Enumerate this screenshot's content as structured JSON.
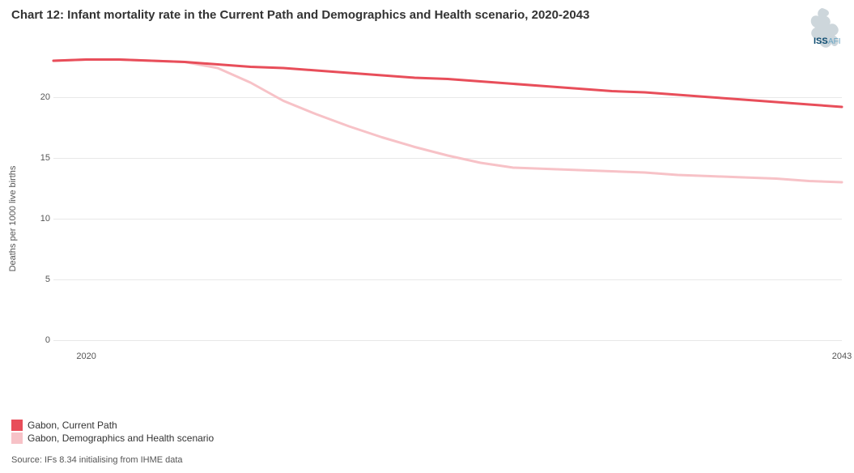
{
  "title": "Chart 12: Infant mortality rate in the Current Path and Demographics and Health scenario, 2020-2043",
  "logo": {
    "text_left": "ISS",
    "text_right": "AFI",
    "color_left": "#0b4a6f",
    "color_right": "#6aa5c4",
    "silhouette_color": "#cdd6db"
  },
  "y_axis": {
    "label": "Deaths per 1000 live births",
    "min": 0,
    "max": 24,
    "ticks": [
      0,
      5,
      10,
      15,
      20
    ]
  },
  "x_axis": {
    "min": 2019,
    "max": 2043,
    "ticks": [
      2020,
      2043
    ]
  },
  "grid_color": "#e8e8e8",
  "background_color": "#ffffff",
  "series": [
    {
      "name": "Gabon, Current Path",
      "color": "#e84e5a",
      "line_width": 3,
      "points": [
        {
          "x": 2019,
          "y": 23.0
        },
        {
          "x": 2020,
          "y": 23.1
        },
        {
          "x": 2021,
          "y": 23.1
        },
        {
          "x": 2022,
          "y": 23.0
        },
        {
          "x": 2023,
          "y": 22.9
        },
        {
          "x": 2024,
          "y": 22.7
        },
        {
          "x": 2025,
          "y": 22.5
        },
        {
          "x": 2026,
          "y": 22.4
        },
        {
          "x": 2027,
          "y": 22.2
        },
        {
          "x": 2028,
          "y": 22.0
        },
        {
          "x": 2029,
          "y": 21.8
        },
        {
          "x": 2030,
          "y": 21.6
        },
        {
          "x": 2031,
          "y": 21.5
        },
        {
          "x": 2032,
          "y": 21.3
        },
        {
          "x": 2033,
          "y": 21.1
        },
        {
          "x": 2034,
          "y": 20.9
        },
        {
          "x": 2035,
          "y": 20.7
        },
        {
          "x": 2036,
          "y": 20.5
        },
        {
          "x": 2037,
          "y": 20.4
        },
        {
          "x": 2038,
          "y": 20.2
        },
        {
          "x": 2039,
          "y": 20.0
        },
        {
          "x": 2040,
          "y": 19.8
        },
        {
          "x": 2041,
          "y": 19.6
        },
        {
          "x": 2042,
          "y": 19.4
        },
        {
          "x": 2043,
          "y": 19.2
        }
      ]
    },
    {
      "name": "Gabon, Demographics and Health scenario",
      "color": "#f7c2c7",
      "line_width": 3,
      "points": [
        {
          "x": 2019,
          "y": 23.0
        },
        {
          "x": 2020,
          "y": 23.1
        },
        {
          "x": 2021,
          "y": 23.1
        },
        {
          "x": 2022,
          "y": 23.0
        },
        {
          "x": 2023,
          "y": 22.9
        },
        {
          "x": 2024,
          "y": 22.4
        },
        {
          "x": 2025,
          "y": 21.2
        },
        {
          "x": 2026,
          "y": 19.7
        },
        {
          "x": 2027,
          "y": 18.6
        },
        {
          "x": 2028,
          "y": 17.6
        },
        {
          "x": 2029,
          "y": 16.7
        },
        {
          "x": 2030,
          "y": 15.9
        },
        {
          "x": 2031,
          "y": 15.2
        },
        {
          "x": 2032,
          "y": 14.6
        },
        {
          "x": 2033,
          "y": 14.2
        },
        {
          "x": 2034,
          "y": 14.1
        },
        {
          "x": 2035,
          "y": 14.0
        },
        {
          "x": 2036,
          "y": 13.9
        },
        {
          "x": 2037,
          "y": 13.8
        },
        {
          "x": 2038,
          "y": 13.6
        },
        {
          "x": 2039,
          "y": 13.5
        },
        {
          "x": 2040,
          "y": 13.4
        },
        {
          "x": 2041,
          "y": 13.3
        },
        {
          "x": 2042,
          "y": 13.1
        },
        {
          "x": 2043,
          "y": 13.0
        }
      ]
    }
  ],
  "legend": {
    "items": [
      {
        "label": "Gabon, Current Path",
        "color": "#e84e5a"
      },
      {
        "label": "Gabon, Demographics and Health scenario",
        "color": "#f7c2c7"
      }
    ]
  },
  "source": "Source: IFs 8.34 initialising from IHME data"
}
